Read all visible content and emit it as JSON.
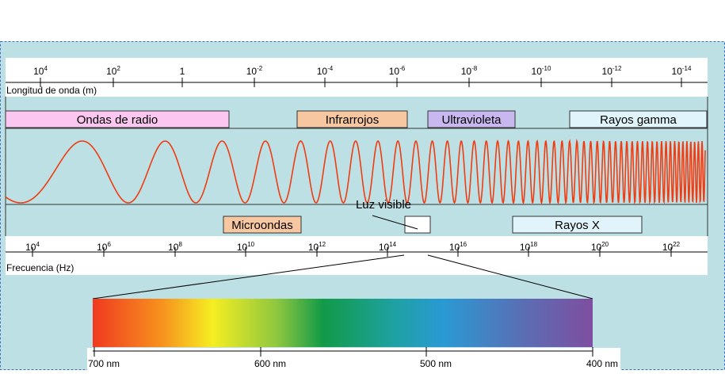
{
  "wavelength_axis": {
    "label": "Longitud de onda (m)",
    "ticks": [
      {
        "base": "10",
        "exp": "4"
      },
      {
        "base": "10",
        "exp": "2"
      },
      {
        "base": "1"
      },
      {
        "base": "10",
        "exp": "-2"
      },
      {
        "base": "10",
        "exp": "-4"
      },
      {
        "base": "10",
        "exp": "-6"
      },
      {
        "base": "10",
        "exp": "-8"
      },
      {
        "base": "10",
        "exp": "-10"
      },
      {
        "base": "10",
        "exp": "-12"
      },
      {
        "base": "10",
        "exp": "-14"
      }
    ]
  },
  "frequency_axis": {
    "label": "Frecuencia (Hz)",
    "ticks": [
      {
        "base": "10",
        "exp": "4"
      },
      {
        "base": "10",
        "exp": "6"
      },
      {
        "base": "10",
        "exp": "8"
      },
      {
        "base": "10",
        "exp": "10"
      },
      {
        "base": "10",
        "exp": "12"
      },
      {
        "base": "10",
        "exp": "14"
      },
      {
        "base": "10",
        "exp": "16"
      },
      {
        "base": "10",
        "exp": "18"
      },
      {
        "base": "10",
        "exp": "20"
      },
      {
        "base": "10",
        "exp": "22"
      }
    ]
  },
  "bands": [
    {
      "label": "Ondas de radio"
    },
    {
      "label": "Infrarrojos"
    },
    {
      "label": "Ultravioleta"
    },
    {
      "label": "Rayos gamma"
    },
    {
      "label": "Microondas"
    },
    {
      "label": "Luz visible"
    },
    {
      "label": "Rayos X"
    }
  ],
  "visible_scale": {
    "ticks": [
      "700 nm",
      "600 nm",
      "500 nm",
      "400 nm"
    ]
  }
}
